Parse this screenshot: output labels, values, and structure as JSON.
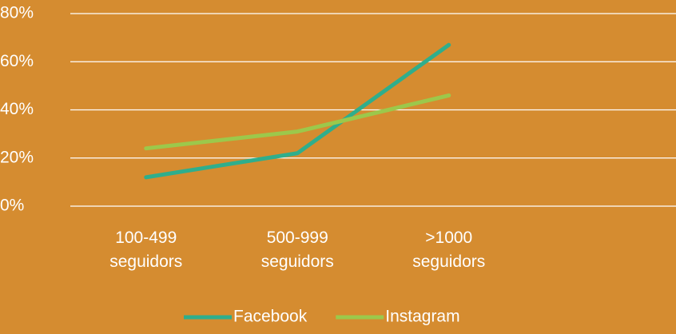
{
  "chart_data": {
    "type": "line",
    "categories": [
      "100-499 seguidors",
      "500-999 seguidors",
      ">1000 seguidors",
      null
    ],
    "series": [
      {
        "name": "Facebook",
        "color": "#2fae8c",
        "values": [
          12,
          22,
          67,
          null
        ]
      },
      {
        "name": "Instagram",
        "color": "#9cc84b",
        "values": [
          24,
          31,
          46,
          null
        ]
      }
    ],
    "ylim": [
      0,
      80
    ],
    "yticks": [
      {
        "value": 0,
        "label": "0%"
      },
      {
        "value": 20,
        "label": "20%"
      },
      {
        "value": 40,
        "label": "40%"
      },
      {
        "value": 60,
        "label": "60%"
      },
      {
        "value": 80,
        "label": "80%"
      }
    ],
    "grid": true,
    "legend": "bottom"
  }
}
